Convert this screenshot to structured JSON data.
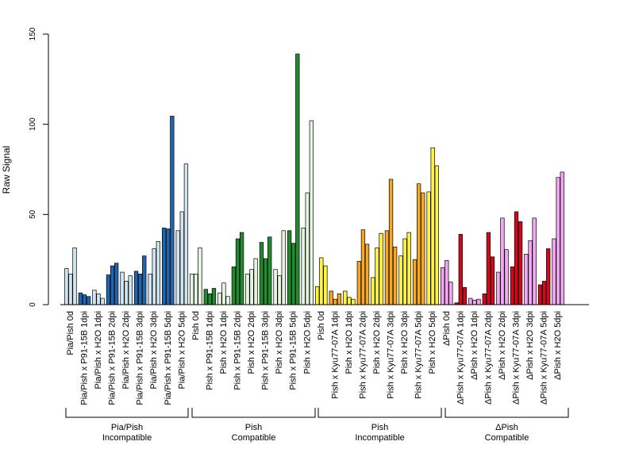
{
  "chart_data": {
    "type": "bar",
    "ylabel": "Raw Signal",
    "ylim": [
      0,
      150
    ],
    "yticks": [
      0,
      50,
      100,
      150
    ],
    "categories": [
      "Pia/Pish 0d",
      "Pia/Pish x P91-15B 1dpi",
      "Pia/Pish x H2O 1dpi",
      "Pia/Pish x P91-15B 2dpi",
      "Pia/Pish x H2O 2dpi",
      "Pia/Pish x P91-15B 3dpi",
      "Pia/Pish x H2O 3dpi",
      "Pia/Pish x P91-15B 5dpi",
      "Pia/Pish x H2O 5dpi",
      "Pish 0d",
      "Pish x P91-15B 1dpi",
      "Pish x H2O 1dpi",
      "Pish x P91-15B 2dpi",
      "Pish x H2O 2dpi",
      "Pish x P91-15B 3dpi",
      "Pish x H2O 3dpi",
      "Pish x P91-15B 5dpi",
      "Pish x H2O 5dpi",
      "Pish 0d",
      "Pish x Kyu77-07A 1dpi",
      "Pish x H2O 1dpi",
      "Pish x Kyu77-07A 2dpi",
      "Pish x H2O 2dpi",
      "Pish x Kyu77-07A 3dpi",
      "Pish x H2O 3dpi",
      "Pish x Kyu77-07A 5dpi",
      "Pish x H2O 5dpi",
      "ΔPish 0d",
      "ΔPish x Kyu77-07A 1dpi",
      "ΔPish x H2O 1dpi",
      "ΔPish x Kyu77-07A 2dpi",
      "ΔPish x H2O 2dpi",
      "ΔPish x Kyu77-07A 3dpi",
      "ΔPish x H2O 3dpi",
      "ΔPish x Kyu77-07A 5dpi",
      "ΔPish x H2O 5dpi"
    ],
    "values": [
      [
        20,
        17,
        31.5
      ],
      [
        6.5,
        5.5,
        4.5
      ],
      [
        8,
        6,
        3.5
      ],
      [
        16.5,
        21.5,
        23
      ],
      [
        18,
        13,
        16
      ],
      [
        18.5,
        17,
        27
      ],
      [
        17,
        31,
        35
      ],
      [
        42.5,
        42,
        104.5
      ],
      [
        41,
        51.5,
        78
      ],
      [
        17,
        17,
        31.5
      ],
      [
        8.5,
        6,
        9
      ],
      [
        6.5,
        12,
        4.5
      ],
      [
        21,
        36.5,
        40
      ],
      [
        17,
        19.5,
        25.5
      ],
      [
        34.5,
        25.5,
        37.5
      ],
      [
        19.5,
        16,
        41
      ],
      [
        41,
        34,
        139
      ],
      [
        42.5,
        62,
        102
      ],
      [
        10,
        26,
        21.5
      ],
      [
        7.5,
        3,
        6
      ],
      [
        7.5,
        4,
        3
      ],
      [
        24,
        41.5,
        33.5
      ],
      [
        15,
        31.5,
        39.5
      ],
      [
        41,
        69.5,
        32
      ],
      [
        27,
        36.5,
        40
      ],
      [
        25,
        67,
        62
      ],
      [
        62.5,
        87,
        77
      ],
      [
        20.5,
        24.5,
        12.5
      ],
      [
        1,
        39,
        9.5
      ],
      [
        3.5,
        2.5,
        3
      ],
      [
        6,
        40,
        26.5
      ],
      [
        18,
        48,
        30.5
      ],
      [
        21,
        51.5,
        46
      ],
      [
        28,
        35.5,
        48
      ],
      [
        11,
        13,
        31
      ],
      [
        36.5,
        70.5,
        73.5
      ]
    ],
    "colors": {
      "blue_infected": "#2166ac",
      "blue_mock": "#d1e5f0",
      "green_infected": "#238b2f",
      "green_mock": "#e5f5e0",
      "yellow_mock": "#fff340",
      "yellow_infected": "#f7a823",
      "red_mock": "#f4a6f4",
      "red_infected": "#d00a1e"
    },
    "bar_fills": [
      "blue_mock",
      "blue_infected",
      "blue_mock",
      "blue_infected",
      "blue_mock",
      "blue_infected",
      "blue_mock",
      "blue_infected",
      "blue_mock",
      "green_mock",
      "green_infected",
      "green_mock",
      "green_infected",
      "green_mock",
      "green_infected",
      "green_mock",
      "green_infected",
      "green_mock",
      "yellow_mock",
      "yellow_infected",
      "yellow_mock",
      "yellow_infected",
      "yellow_mock",
      "yellow_infected",
      "yellow_mock",
      "yellow_infected",
      "yellow_mock",
      "red_mock",
      "red_infected",
      "red_mock",
      "red_infected",
      "red_mock",
      "red_infected",
      "red_mock",
      "red_infected",
      "red_mock"
    ],
    "groups": [
      {
        "line1": "Pia/Pish",
        "line2": "Incompatible"
      },
      {
        "line1": "Pish",
        "line2": "Compatible"
      },
      {
        "line1": "Pish",
        "line2": "Incompatible"
      },
      {
        "line1": "ΔPish",
        "line2": "Compatible"
      }
    ],
    "grid": false,
    "legend": "none"
  }
}
